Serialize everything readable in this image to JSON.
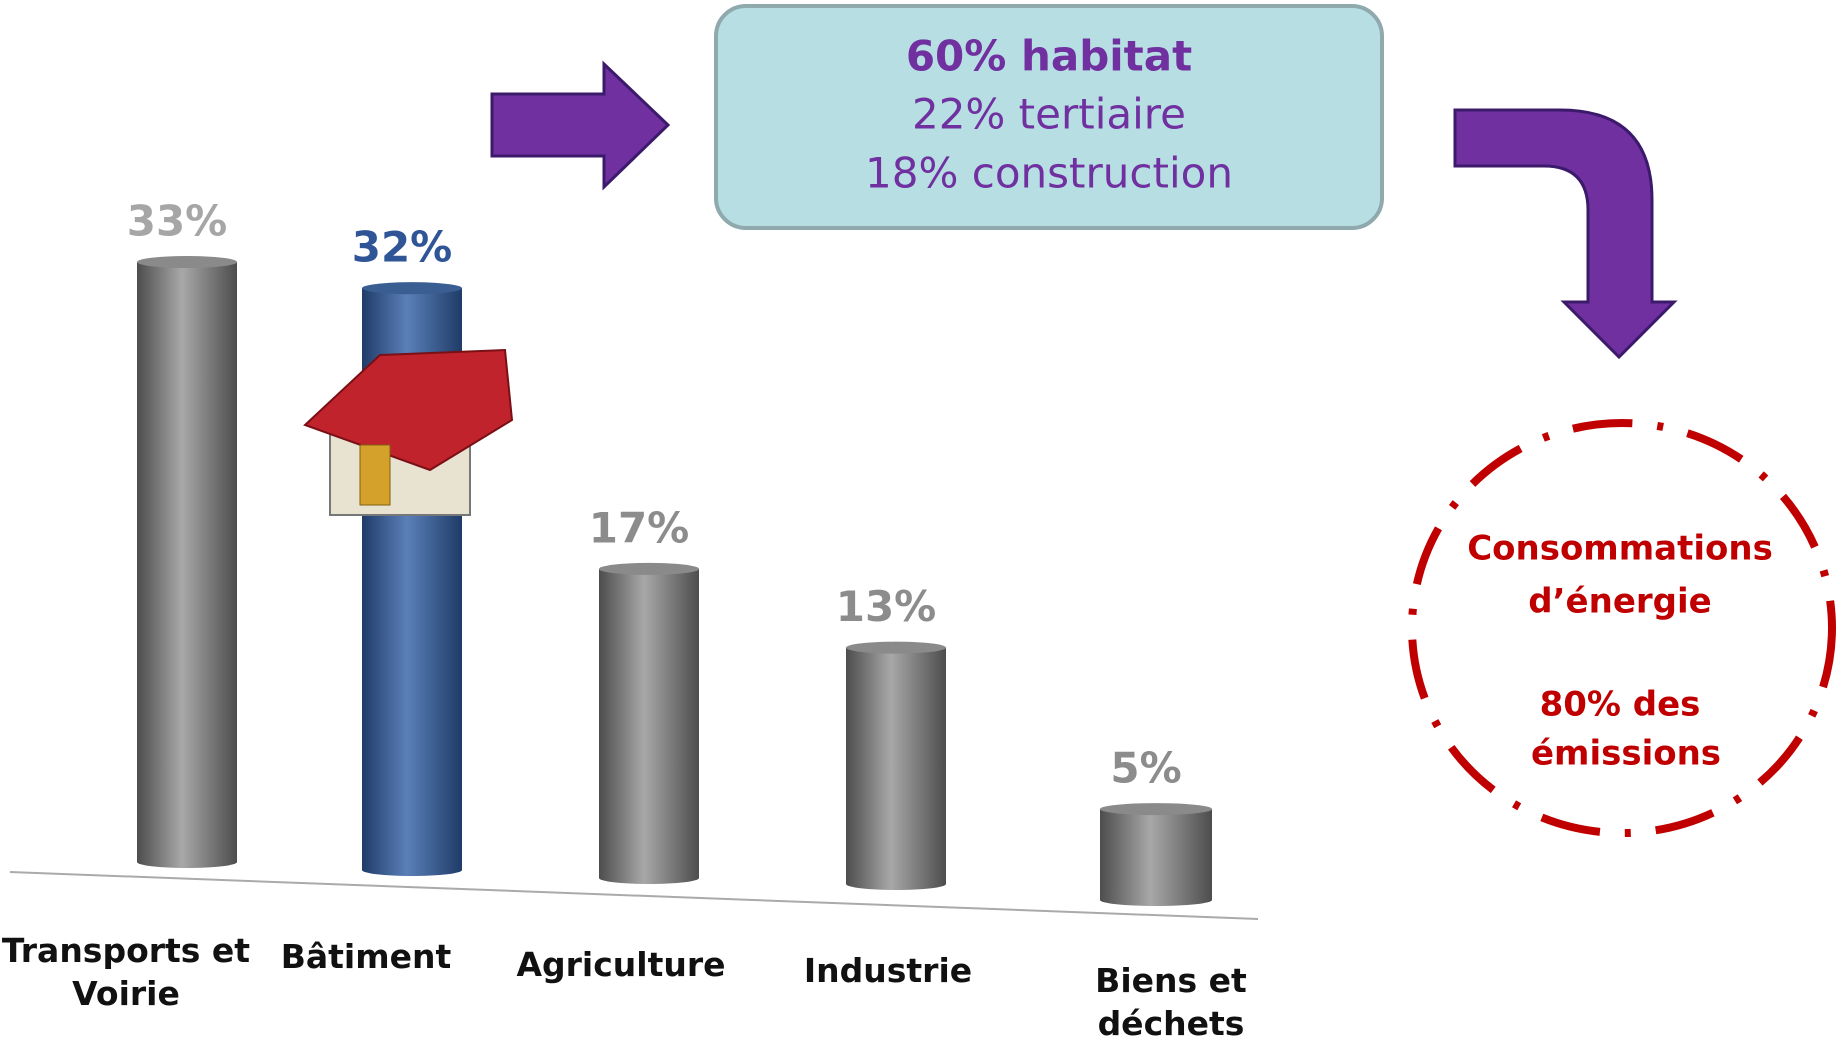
{
  "chart_data": {
    "type": "bar",
    "categories": [
      "Transports et Voirie",
      "Bâtiment",
      "Agriculture",
      "Industrie",
      "Biens et déchets"
    ],
    "values": [
      33,
      32,
      17,
      13,
      5
    ],
    "value_labels": [
      "33%",
      "32%",
      "17%",
      "13%",
      "5%"
    ],
    "colors": [
      "#8a8a8a",
      "#3a5d92",
      "#8a8a8a",
      "#8a8a8a",
      "#8a8a8a"
    ],
    "label_colors": [
      "#a6a6a6",
      "#2f5597",
      "#8c8c8c",
      "#8c8c8c",
      "#8c8c8c"
    ]
  },
  "breakdown": {
    "lines": [
      "60% habitat",
      "22% tertiaire",
      "18% construction"
    ]
  },
  "callout": {
    "lines": [
      "Consommations",
      "d’énergie",
      "80% des",
      "émissions"
    ]
  }
}
